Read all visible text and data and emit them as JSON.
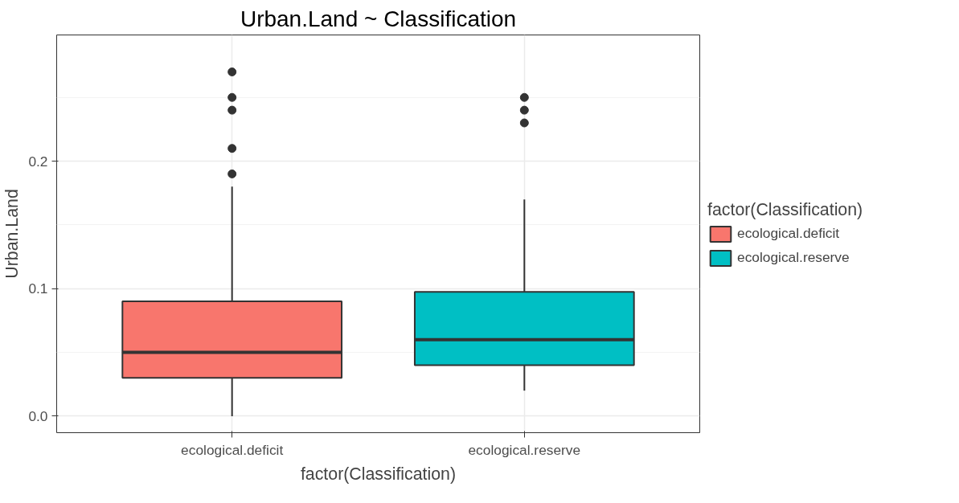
{
  "chart_data": {
    "type": "box",
    "title": "Urban.Land ~ Classification",
    "xlabel": "factor(Classification)",
    "ylabel": "Urban.Land",
    "legend_title": "factor(Classification)",
    "categories": [
      "ecological.deficit",
      "ecological.reserve"
    ],
    "series": [
      {
        "name": "ecological.deficit",
        "color": "#f8766d",
        "boxes": [
          {
            "low": 0.0,
            "q1": 0.03,
            "median": 0.05,
            "q3": 0.09,
            "high": 0.18,
            "outliers": [
              0.19,
              0.21,
              0.24,
              0.25,
              0.27
            ]
          },
          null
        ]
      },
      {
        "name": "ecological.reserve",
        "color": "#00bfc4",
        "boxes": [
          null,
          {
            "low": 0.02,
            "q1": 0.04,
            "median": 0.06,
            "q3": 0.0975,
            "high": 0.17,
            "outliers": [
              0.23,
              0.24,
              0.25
            ]
          }
        ]
      }
    ],
    "ylim": [
      -0.013,
      0.299
    ],
    "yticks": [
      {
        "value": 0,
        "label": "0.0"
      },
      {
        "value": 0.1,
        "label": "0.1"
      },
      {
        "value": 0.2,
        "label": "0.2"
      }
    ],
    "grid": true,
    "legend": "right"
  }
}
